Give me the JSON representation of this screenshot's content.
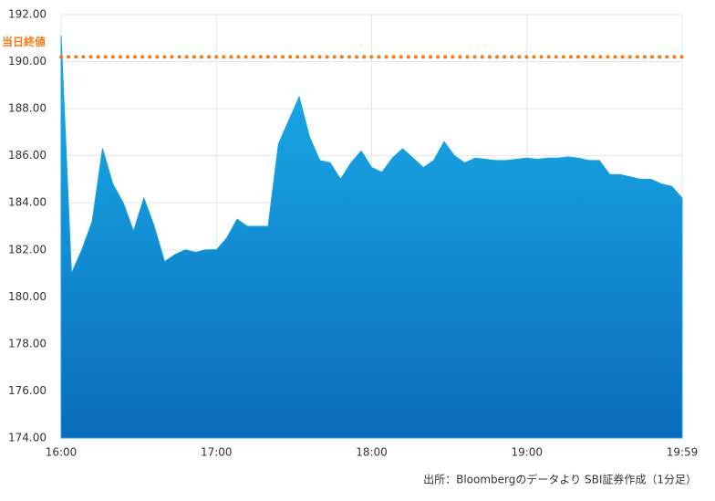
{
  "chart_data": {
    "type": "area",
    "source": "出所：Bloombergのデータより SBI証券作成（1分足）",
    "reference_line": {
      "value": 190.2,
      "label": "当日終値",
      "color": "#f07c1e"
    },
    "categories": [
      "16:00",
      null,
      null,
      null,
      null,
      null,
      null,
      null,
      null,
      null,
      null,
      null,
      null,
      null,
      null,
      "17:00",
      null,
      null,
      null,
      null,
      null,
      null,
      null,
      null,
      null,
      null,
      null,
      null,
      null,
      null,
      "18:00",
      null,
      null,
      null,
      null,
      null,
      null,
      null,
      null,
      null,
      null,
      null,
      null,
      null,
      null,
      "19:00",
      null,
      null,
      null,
      null,
      null,
      null,
      null,
      null,
      null,
      null,
      null,
      null,
      null,
      null,
      "19:59"
    ],
    "values": [
      191.1,
      181.0,
      182.0,
      183.2,
      186.3,
      184.8,
      184.0,
      182.8,
      184.2,
      183.0,
      181.5,
      181.8,
      182.0,
      181.9,
      182.0,
      182.0,
      182.5,
      183.3,
      183.0,
      183.0,
      183.0,
      186.5,
      187.5,
      188.5,
      186.8,
      185.8,
      185.7,
      185.0,
      185.7,
      186.2,
      185.5,
      185.3,
      185.9,
      186.3,
      185.9,
      185.5,
      185.8,
      186.6,
      186.0,
      185.7,
      185.9,
      185.85,
      185.8,
      185.8,
      185.85,
      185.9,
      185.85,
      185.9,
      185.9,
      185.95,
      185.9,
      185.8,
      185.8,
      185.2,
      185.2,
      185.1,
      185.0,
      185.0,
      184.8,
      184.7,
      184.2
    ],
    "ylim": [
      174,
      192
    ],
    "yticks": [
      {
        "value": 174,
        "label": "174.00"
      },
      {
        "value": 176,
        "label": "176.00"
      },
      {
        "value": 178,
        "label": "178.00"
      },
      {
        "value": 180,
        "label": "180.00"
      },
      {
        "value": 182,
        "label": "182.00"
      },
      {
        "value": 184,
        "label": "184.00"
      },
      {
        "value": 186,
        "label": "186.00"
      },
      {
        "value": 188,
        "label": "188.00"
      },
      {
        "value": 190,
        "label": "190.00"
      },
      {
        "value": 192,
        "label": "192.00"
      }
    ],
    "grid": true
  }
}
